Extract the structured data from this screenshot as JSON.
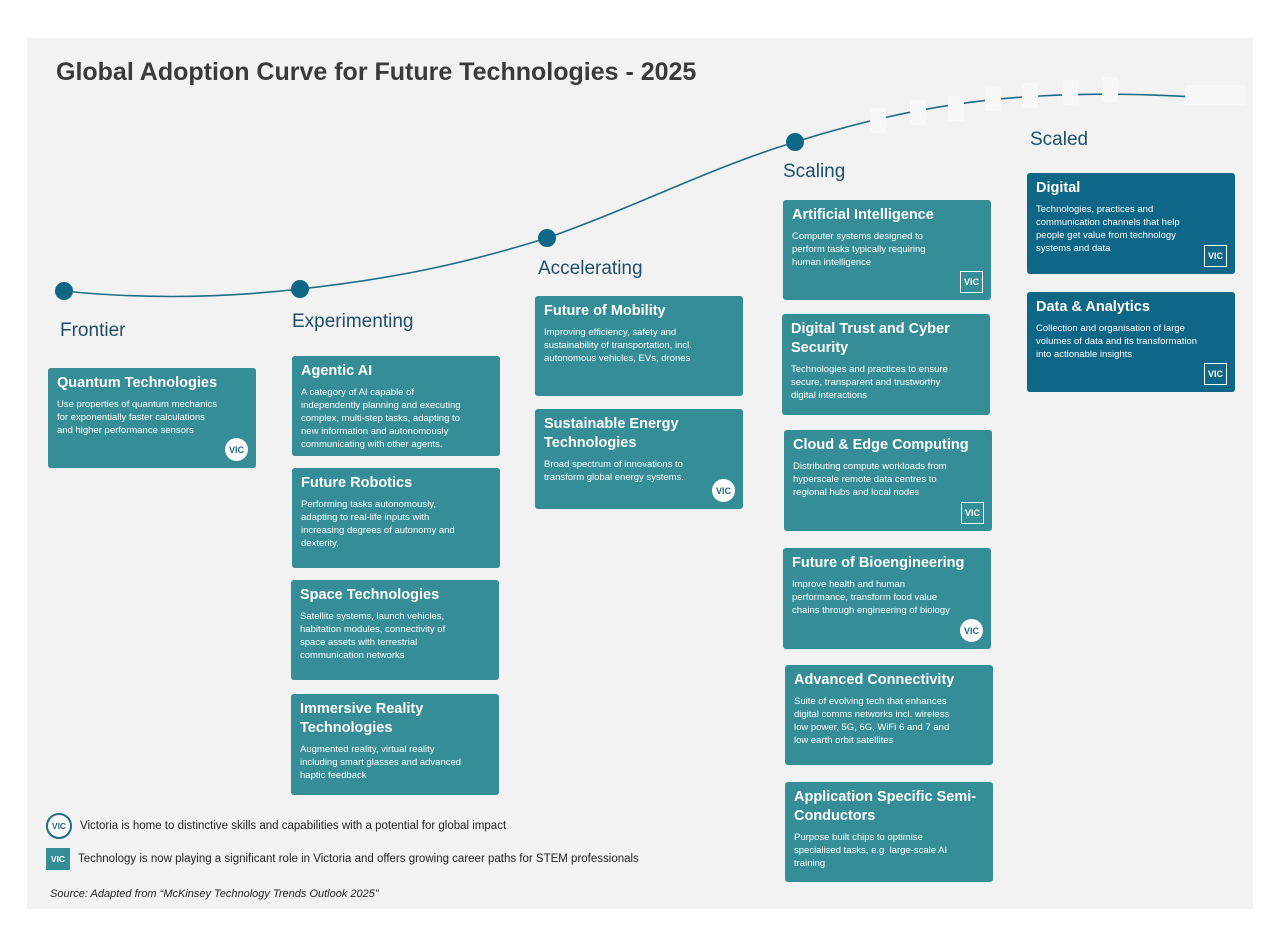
{
  "title": "Global Adoption Curve for Future Technologies - 2025",
  "colors": {
    "accent": "#1f6b84",
    "card": "#358e97",
    "card_scaled": "#0e6787",
    "panel": "#f2f2f2"
  },
  "stages": [
    "Frontier",
    "Experimenting",
    "Accelerating",
    "Scaling",
    "Scaled"
  ],
  "badge_text": "VIC",
  "cards": {
    "quantum": {
      "title": "Quantum Technologies",
      "desc": "Use properties of quantum mechanics for exponentially faster calculations and higher performance sensors",
      "badge": "circle"
    },
    "agentic": {
      "title": "Agentic AI",
      "desc": "A category of AI capable of independently planning and executing complex, multi-step tasks, adapting to new information and autonomously communicating with other agents.",
      "badge": "none"
    },
    "robotics": {
      "title": "Future Robotics",
      "desc": "Performing tasks autonomously, adapting to real-life inputs with increasing degrees of autonomy and dexterity,",
      "badge": "none"
    },
    "space": {
      "title": "Space Technologies",
      "desc": "Satellite systems, launch vehicles, habitation modules, connectivity of space assets with terrestrial communication networks",
      "badge": "none"
    },
    "immersive": {
      "title": "Immersive Reality Technologies",
      "desc": "Augmented reality, virtual reality including smart glasses and advanced haptic feedback",
      "badge": "none"
    },
    "mobility": {
      "title": "Future of Mobility",
      "desc": "Improving efficiency, safety and sustainability of transportation, incl. autonomous vehicles, EVs, drones",
      "badge": "none"
    },
    "energy": {
      "title": "Sustainable Energy Technologies",
      "desc": "Broad spectrum of innovations to transform global energy systems.",
      "badge": "circle"
    },
    "ai": {
      "title": "Artificial Intelligence",
      "desc": "Computer systems designed to perform tasks typically requiring human intelligence",
      "badge": "square"
    },
    "trust": {
      "title": "Digital Trust and Cyber Security",
      "desc": "Technologies and practices to ensure secure, transparent and trustworthy digital interactions",
      "badge": "none"
    },
    "cloud": {
      "title": "Cloud & Edge Computing",
      "desc": "Distributing compute workloads from hyperscale remote data centres to regional hubs and local nodes",
      "badge": "square"
    },
    "bio": {
      "title": "Future of Bioengineering",
      "desc": "Improve health and human performance, transform food value chains through engineering of biology",
      "badge": "circle"
    },
    "connectivity": {
      "title": "Advanced Connectivity",
      "desc": "Suite of evolving tech that enhances digital comms networks incl. wireless low power, 5G, 6G, WiFi 6 and 7 and low earth orbit satellites",
      "badge": "none"
    },
    "semi": {
      "title": "Application Specific Semi-Conductors",
      "desc": "Purpose built chips to optimise specialised tasks, e.g. large-scale AI training",
      "badge": "none"
    },
    "digital": {
      "title": "Digital",
      "desc": "Technologies, practices and communication channels that help people get value from technology systems and data",
      "badge": "square"
    },
    "data": {
      "title": "Data & Analytics",
      "desc": "Collection and organisation of large volumes of data and its transformation into actionable insights",
      "badge": "square"
    }
  },
  "legend": {
    "circle_text": "Victoria is home to distinctive skills and capabilities with a potential for global impact",
    "square_text": "Technology is now playing a significant role in Victoria and offers growing career paths for STEM professionals"
  },
  "source": "Source: Adapted from “McKinsey Technology Trends Outlook 2025”"
}
